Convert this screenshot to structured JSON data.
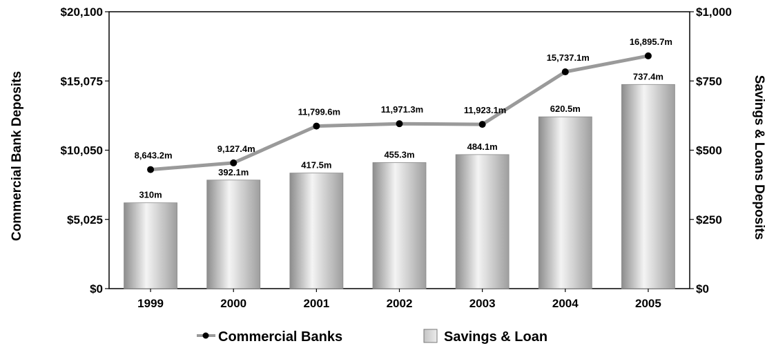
{
  "chart_data": {
    "type": "bar",
    "categories": [
      "1999",
      "2000",
      "2001",
      "2002",
      "2003",
      "2004",
      "2005"
    ],
    "series": [
      {
        "name": "Commercial Banks",
        "type": "line",
        "axis": "left",
        "values": [
          8643.2,
          9127.4,
          11799.6,
          11971.3,
          11923.1,
          15737.1,
          16895.7
        ],
        "labels": [
          "8,643.2m",
          "9,127.4m",
          "11,799.6m",
          "11,971.3m",
          "11,923.1m",
          "15,737.1m",
          "16,895.7m"
        ]
      },
      {
        "name": "Savings & Loan",
        "type": "bar",
        "axis": "right",
        "values": [
          310,
          392.1,
          417.5,
          455.3,
          484.1,
          620.5,
          737.4
        ],
        "labels": [
          "310m",
          "392.1m",
          "417.5m",
          "455.3m",
          "484.1m",
          "620.5m",
          "737.4m"
        ]
      }
    ],
    "ylabel": "Commercial Bank Deposits",
    "y2label": "Savings & Loans Deposits",
    "ylim": [
      0,
      20100
    ],
    "y2lim": [
      0,
      1000
    ],
    "yticks": [
      "$0",
      "$5,025",
      "$10,050",
      "$15,075",
      "$20,100"
    ],
    "y2ticks": [
      "$0",
      "$250",
      "$500",
      "$750",
      "$1,000"
    ],
    "grid": false,
    "legend_position": "bottom",
    "colors": {
      "line": "#9a9a9a",
      "marker": "#000000",
      "bar_light": "#f4f4f4",
      "bar_dark": "#8c8c8c"
    }
  }
}
